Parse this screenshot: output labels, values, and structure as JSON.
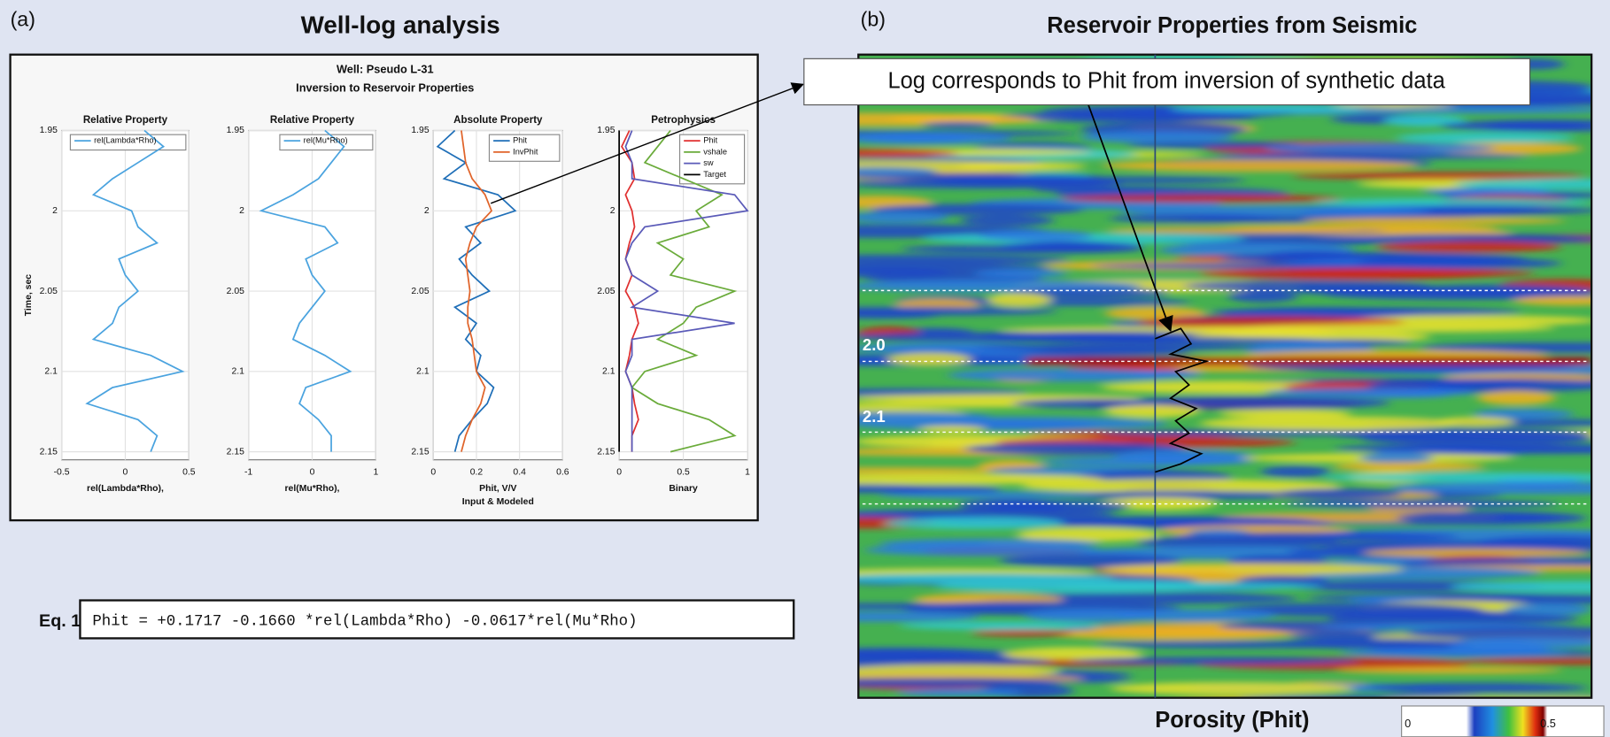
{
  "panel_a": {
    "label": "(a)",
    "title": "Well-log analysis",
    "well": "Well: Pseudo L-31",
    "subtitle": "Inversion to Reservoir Properties"
  },
  "panel_b": {
    "label": "(b)",
    "title": "Reservoir Properties from Seismic",
    "callout": "Log corresponds to Phit from inversion of synthetic data",
    "time_labels": [
      "2.0",
      "2.1"
    ]
  },
  "colorbar": {
    "label": "Porosity (Phit)",
    "ticks": [
      0,
      0.5
    ]
  },
  "equation": {
    "label": "Eq. 1.",
    "text": "Phit = +0.1717 -0.1660 *rel(Lambda*Rho) -0.0617*rel(Mu*Rho)"
  },
  "chart_data": [
    {
      "type": "line",
      "title": "Relative Property",
      "xlabel": "rel(Lambda*Rho),",
      "ylabel": "Time, sec",
      "y": [
        1.95,
        1.96,
        1.97,
        1.98,
        1.99,
        2.0,
        2.01,
        2.02,
        2.03,
        2.04,
        2.05,
        2.06,
        2.07,
        2.08,
        2.09,
        2.1,
        2.11,
        2.12,
        2.13,
        2.14,
        2.15
      ],
      "xlim": [
        -0.5,
        0.5
      ],
      "xticks": [
        -0.5,
        0,
        0.5
      ],
      "ylim": [
        1.95,
        2.155
      ],
      "yticks": [
        1.95,
        2,
        2.05,
        2.1,
        2.15
      ],
      "grid": true,
      "series": [
        {
          "name": "rel(Lambda*Rho)",
          "color": "#4aa3df",
          "values": [
            0.15,
            0.3,
            0.1,
            -0.1,
            -0.25,
            0.05,
            0.1,
            0.25,
            -0.05,
            0.0,
            0.1,
            -0.05,
            -0.1,
            -0.25,
            0.2,
            0.45,
            -0.1,
            -0.3,
            0.1,
            0.25,
            0.2
          ]
        }
      ]
    },
    {
      "type": "line",
      "title": "Relative Property",
      "xlabel": "rel(Mu*Rho),",
      "y": [
        1.95,
        1.96,
        1.97,
        1.98,
        1.99,
        2.0,
        2.01,
        2.02,
        2.03,
        2.04,
        2.05,
        2.06,
        2.07,
        2.08,
        2.09,
        2.1,
        2.11,
        2.12,
        2.13,
        2.14,
        2.15
      ],
      "xlim": [
        -1,
        1
      ],
      "xticks": [
        -1,
        0,
        1
      ],
      "ylim": [
        1.95,
        2.155
      ],
      "yticks": [
        1.95,
        2,
        2.05,
        2.1,
        2.15
      ],
      "grid": true,
      "series": [
        {
          "name": "rel(Mu*Rho)",
          "color": "#4aa3df",
          "values": [
            0.2,
            0.5,
            0.3,
            0.1,
            -0.3,
            -0.8,
            0.2,
            0.4,
            -0.1,
            0.0,
            0.2,
            0.0,
            -0.2,
            -0.3,
            0.2,
            0.6,
            -0.1,
            -0.2,
            0.1,
            0.3,
            0.3
          ]
        }
      ]
    },
    {
      "type": "line",
      "title": "Absolute Property",
      "xlabel": "Phit, V/V",
      "xsublabel": "Input & Modeled",
      "y": [
        1.95,
        1.96,
        1.97,
        1.98,
        1.99,
        2.0,
        2.01,
        2.02,
        2.03,
        2.04,
        2.05,
        2.06,
        2.07,
        2.08,
        2.09,
        2.1,
        2.11,
        2.12,
        2.13,
        2.14,
        2.15
      ],
      "xlim": [
        0,
        0.6
      ],
      "xticks": [
        0,
        0.2,
        0.4,
        0.6
      ],
      "ylim": [
        1.95,
        2.155
      ],
      "yticks": [
        1.95,
        2,
        2.05,
        2.1,
        2.15
      ],
      "grid": true,
      "series": [
        {
          "name": "Phit",
          "color": "#1f6fb8",
          "values": [
            0.1,
            0.02,
            0.15,
            0.05,
            0.3,
            0.38,
            0.15,
            0.22,
            0.12,
            0.18,
            0.26,
            0.1,
            0.2,
            0.15,
            0.22,
            0.2,
            0.28,
            0.25,
            0.18,
            0.12,
            0.1
          ]
        },
        {
          "name": "InvPhit",
          "color": "#e0642a",
          "values": [
            0.13,
            0.14,
            0.15,
            0.18,
            0.24,
            0.27,
            0.2,
            0.17,
            0.15,
            0.16,
            0.17,
            0.16,
            0.16,
            0.18,
            0.19,
            0.2,
            0.24,
            0.22,
            0.18,
            0.15,
            0.13
          ]
        }
      ]
    },
    {
      "type": "line",
      "title": "Petrophysics",
      "xlabel": "Binary",
      "y": [
        1.95,
        1.96,
        1.97,
        1.98,
        1.99,
        2.0,
        2.01,
        2.02,
        2.03,
        2.04,
        2.05,
        2.06,
        2.07,
        2.08,
        2.09,
        2.1,
        2.11,
        2.12,
        2.13,
        2.14,
        2.15
      ],
      "xlim": [
        0,
        1
      ],
      "xticks": [
        0,
        0.5,
        1
      ],
      "ylim": [
        1.95,
        2.155
      ],
      "yticks": [
        1.95,
        2,
        2.05,
        2.1,
        2.15
      ],
      "grid": true,
      "series": [
        {
          "name": "Phit",
          "color": "#e03030",
          "values": [
            0.08,
            0.02,
            0.1,
            0.12,
            0.05,
            0.1,
            0.12,
            0.08,
            0.05,
            0.1,
            0.05,
            0.12,
            0.15,
            0.1,
            0.08,
            0.05,
            0.1,
            0.12,
            0.15,
            0.1,
            0.1
          ]
        },
        {
          "name": "vshale",
          "color": "#6aab3a",
          "values": [
            0.4,
            0.3,
            0.2,
            0.5,
            0.8,
            0.6,
            0.7,
            0.3,
            0.5,
            0.4,
            0.9,
            0.6,
            0.5,
            0.3,
            0.6,
            0.2,
            0.1,
            0.3,
            0.7,
            0.9,
            0.4
          ]
        },
        {
          "name": "sw",
          "color": "#5a5ab8",
          "values": [
            0.1,
            0.05,
            0.1,
            0.1,
            0.9,
            1,
            0.2,
            0.1,
            0.05,
            0.1,
            0.3,
            0.1,
            0.9,
            0.1,
            0.1,
            0.05,
            0.1,
            0.1,
            0.1,
            0.1,
            0.1
          ]
        },
        {
          "name": "Target",
          "color": "#000000",
          "values": [
            0,
            0,
            0,
            0,
            0,
            0,
            0,
            0,
            0,
            0,
            0,
            0,
            0,
            0,
            0,
            0,
            0,
            0,
            0,
            0,
            0
          ]
        }
      ]
    }
  ]
}
